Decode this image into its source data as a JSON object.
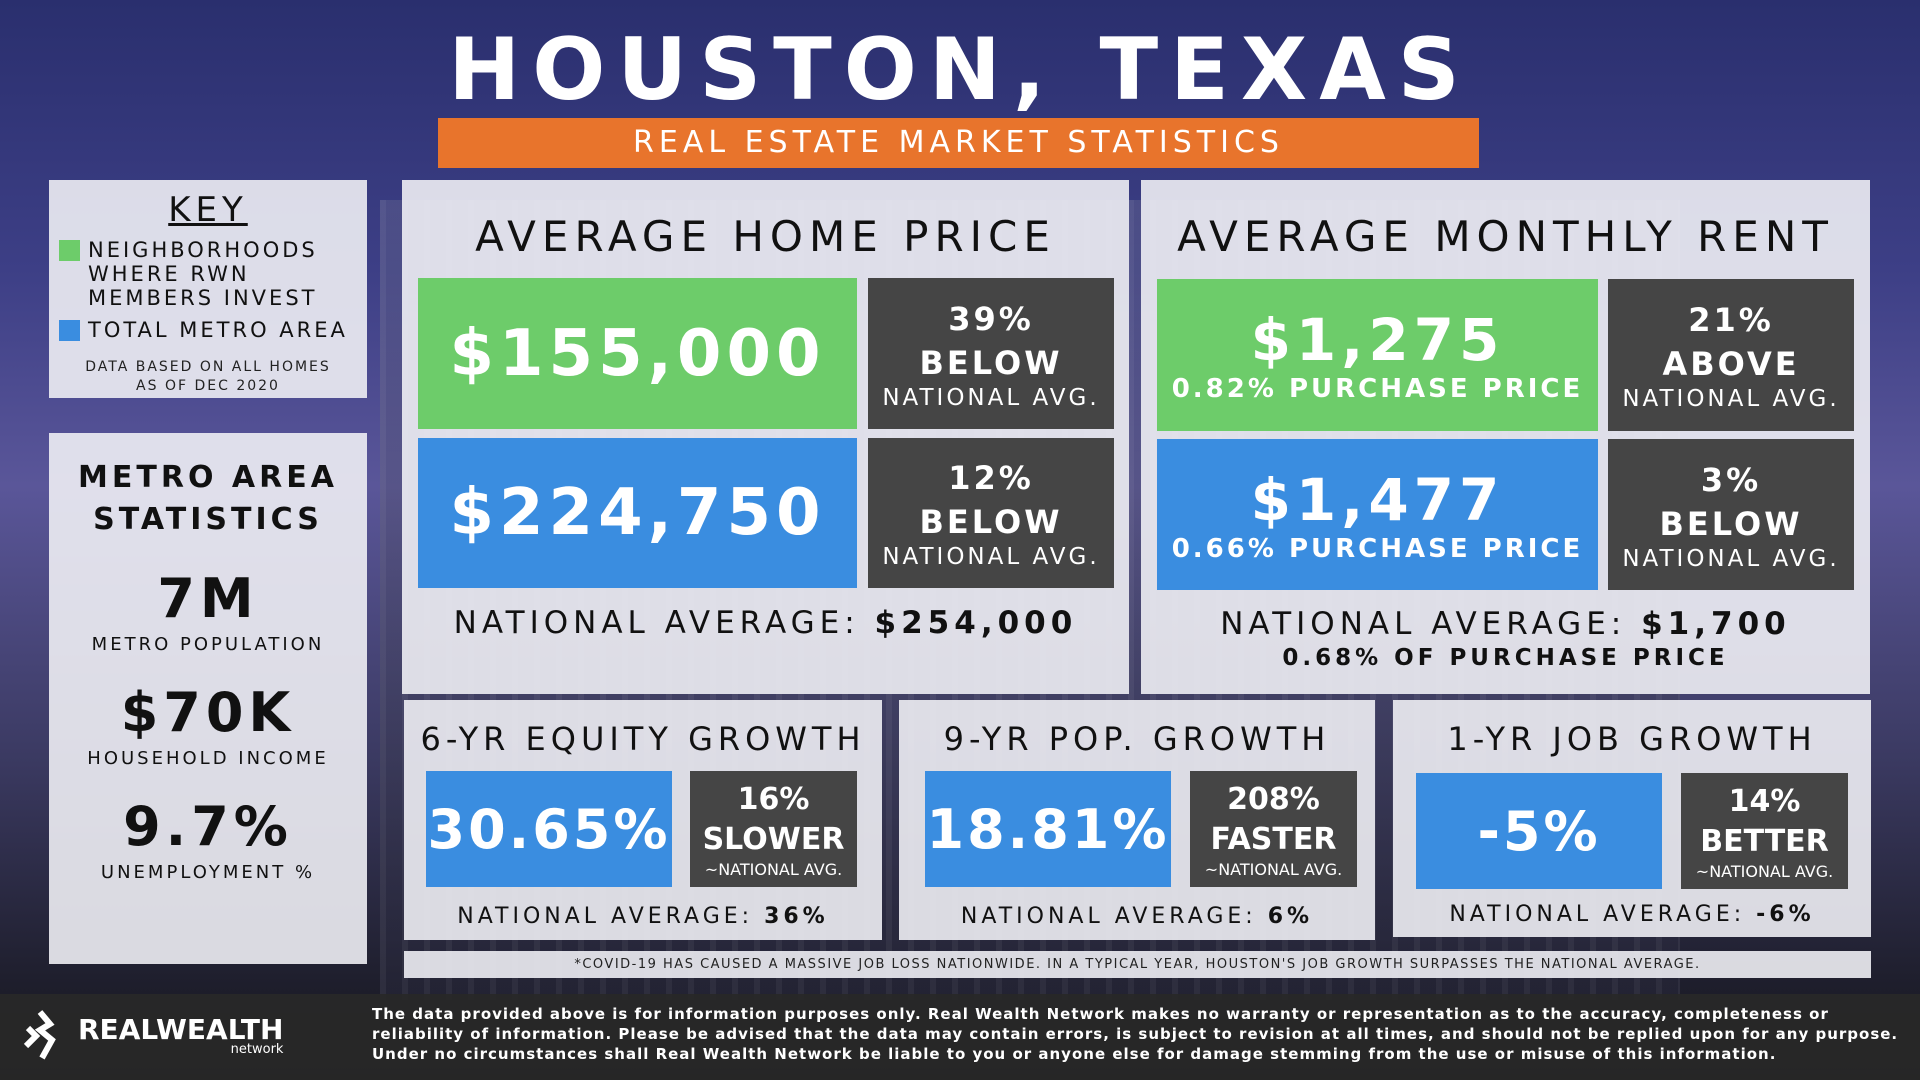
{
  "title": "HOUSTON, TEXAS",
  "subtitle": "REAL ESTATE MARKET STATISTICS",
  "colors": {
    "green": "#6dcc6a",
    "blue": "#3a8de0",
    "dark": "#454545",
    "orange": "#e8742c"
  },
  "key": {
    "heading": "KEY",
    "items": [
      {
        "label": "NEIGHBORHOODS WHERE RWN MEMBERS INVEST",
        "color": "#6dcc6a"
      },
      {
        "label": "TOTAL METRO AREA",
        "color": "#3a8de0"
      }
    ],
    "note_line1": "DATA BASED ON ALL HOMES",
    "note_line2": "AS OF DEC 2020"
  },
  "metro": {
    "heading_line1": "METRO AREA",
    "heading_line2": "STATISTICS",
    "stats": [
      {
        "value": "7M",
        "label": "METRO POPULATION"
      },
      {
        "value": "$70K",
        "label": "HOUSEHOLD INCOME"
      },
      {
        "value": "9.7%",
        "label": "UNEMPLOYMENT %"
      }
    ]
  },
  "home_price": {
    "heading": "AVERAGE HOME PRICE",
    "rwn": {
      "value": "$155,000",
      "pct": "39%",
      "dir": "BELOW",
      "cmp": "NATIONAL AVG."
    },
    "metro": {
      "value": "$224,750",
      "pct": "12%",
      "dir": "BELOW",
      "cmp": "NATIONAL AVG."
    },
    "national_label": "NATIONAL AVERAGE:",
    "national_value": "$254,000"
  },
  "rent": {
    "heading": "AVERAGE MONTHLY RENT",
    "rwn": {
      "value": "$1,275",
      "sub": "0.82% PURCHASE PRICE",
      "pct": "21%",
      "dir": "ABOVE",
      "cmp": "NATIONAL AVG."
    },
    "metro": {
      "value": "$1,477",
      "sub": "0.66% PURCHASE PRICE",
      "pct": "3%",
      "dir": "BELOW",
      "cmp": "NATIONAL AVG."
    },
    "national_label": "NATIONAL AVERAGE:",
    "national_value": "$1,700",
    "national_sub": "0.68% OF PURCHASE PRICE"
  },
  "growth": [
    {
      "heading": "6-YR EQUITY GROWTH",
      "value": "30.65%",
      "pct": "16%",
      "dir": "SLOWER",
      "cmp": "~NATIONAL AVG.",
      "national_label": "NATIONAL AVERAGE:",
      "national_value": "36%"
    },
    {
      "heading": "9-YR POP. GROWTH",
      "value": "18.81%",
      "pct": "208%",
      "dir": "FASTER",
      "cmp": "~NATIONAL AVG.",
      "national_label": "NATIONAL AVERAGE:",
      "national_value": "6%"
    },
    {
      "heading": "1-YR JOB GROWTH",
      "value": "-5%",
      "pct": "14%",
      "dir": "BETTER",
      "cmp": "~NATIONAL AVG.",
      "national_label": "NATIONAL AVERAGE:",
      "national_value": "-6%"
    }
  ],
  "covid_note": "*COVID-19 HAS CAUSED A MASSIVE JOB LOSS NATIONWIDE. IN A TYPICAL YEAR, HOUSTON'S JOB GROWTH SURPASSES THE NATIONAL AVERAGE.",
  "footer": {
    "logo_text": "REALWEALTH",
    "logo_sub": "network",
    "disclaimer": "The data provided above is for information purposes only. Real Wealth Network makes no warranty or representation as to the accuracy, completeness or reliability of information. Please be advised that the data may contain errors, is subject to revision at all times, and should not be replied upon for any purpose. Under no circumstances shall Real Wealth Network be liable to you or anyone else for damage stemming from the use or misuse of this information."
  }
}
